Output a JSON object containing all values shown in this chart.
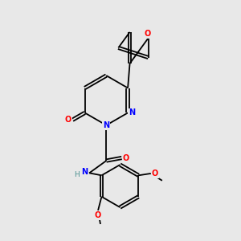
{
  "background_color": "#e8e8e8",
  "bond_color": "#000000",
  "atom_colors": {
    "N": "#0000ff",
    "O": "#ff0000",
    "H": "#4a9090",
    "C": "#000000"
  },
  "figsize": [
    3.0,
    3.0
  ],
  "dpi": 100
}
